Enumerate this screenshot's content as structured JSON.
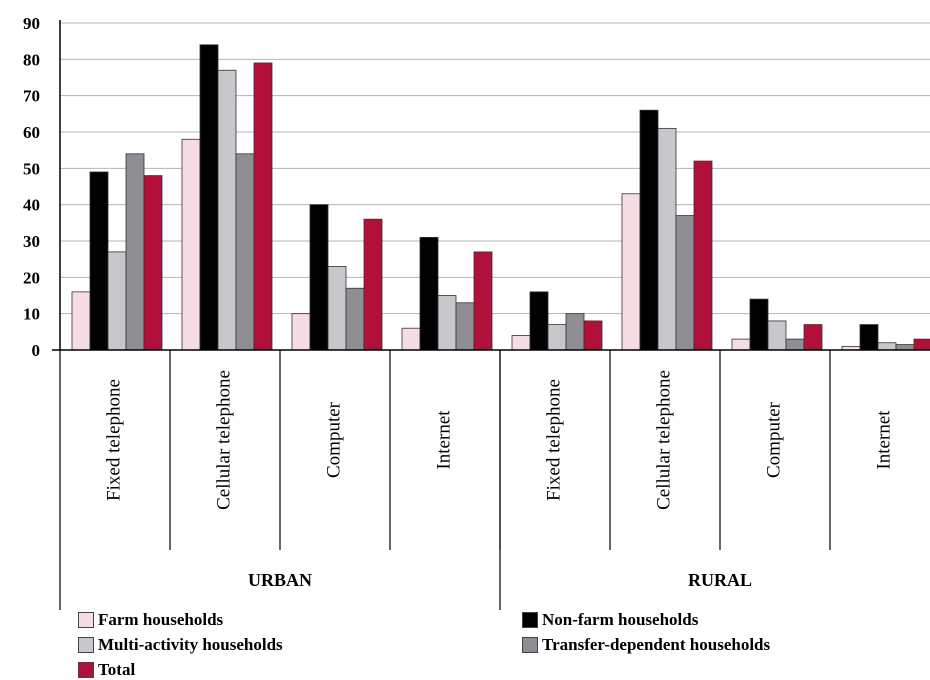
{
  "chart_data": {
    "type": "bar",
    "ylim": [
      0,
      90
    ],
    "yticks": [
      "0",
      "10",
      "20",
      "30",
      "40",
      "50",
      "60",
      "70",
      "80",
      "90"
    ],
    "grid": true,
    "groups": [
      {
        "label": "URBAN",
        "categories": [
          "Fixed telephone",
          "Cellular telephone",
          "Computer",
          "Internet"
        ]
      },
      {
        "label": "RURAL",
        "categories": [
          "Fixed telephone",
          "Cellular telephone",
          "Computer",
          "Internet"
        ]
      }
    ],
    "series": [
      {
        "name": "Farm households",
        "color": "#f5dde3",
        "values": [
          16,
          58,
          10,
          6,
          4,
          43,
          3,
          1
        ]
      },
      {
        "name": "Non-farm households",
        "color": "#000000",
        "values": [
          49,
          84,
          40,
          31,
          16,
          66,
          14,
          7
        ]
      },
      {
        "name": "Multi-activity households",
        "color": "#c8c8cc",
        "values": [
          27,
          77,
          23,
          15,
          7,
          61,
          8,
          2
        ]
      },
      {
        "name": "Transfer-dependent households",
        "color": "#8e8e94",
        "values": [
          54,
          54,
          17,
          13,
          10,
          37,
          3,
          1.5
        ]
      },
      {
        "name": "Total",
        "color": "#b0103a",
        "values": [
          48,
          79,
          36,
          27,
          8,
          52,
          7,
          3
        ]
      }
    ],
    "legend_position": "bottom"
  }
}
